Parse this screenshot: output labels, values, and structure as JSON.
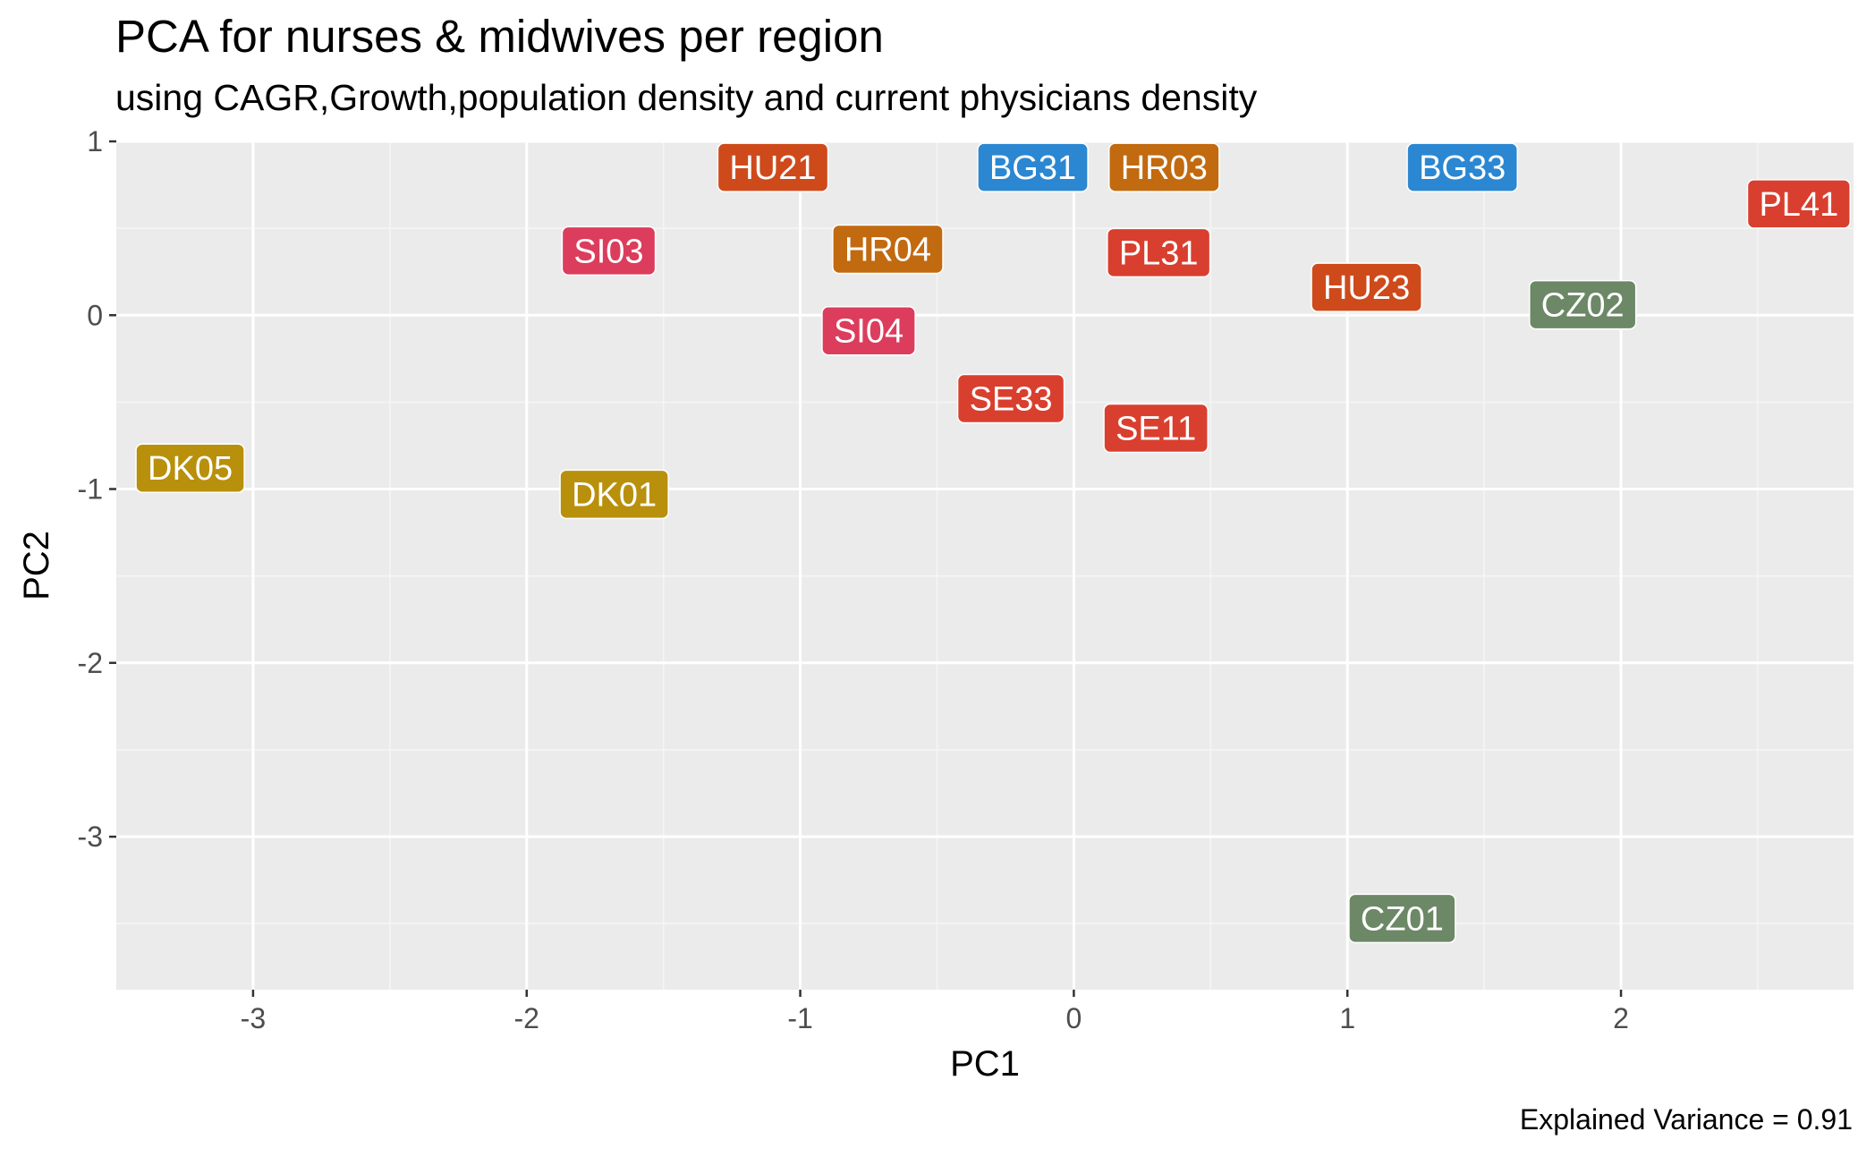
{
  "chart_data": {
    "type": "scatter",
    "title": "PCA for  nurses & midwives per region",
    "subtitle": "using CAGR,Growth,population density and current physicians density",
    "xlabel": "PC1",
    "ylabel": "PC2",
    "caption": "Explained Variance = 0.91",
    "xlim": [
      -3.5,
      2.85
    ],
    "ylim": [
      -3.88,
      1.0
    ],
    "x_ticks": [
      -3,
      -2,
      -1,
      0,
      1,
      2
    ],
    "x_tick_labels": [
      "-3",
      "-2",
      "-1",
      "0",
      "1",
      "2"
    ],
    "y_ticks": [
      -3,
      -2,
      -1,
      0,
      1
    ],
    "y_tick_labels": [
      "-3",
      "-2",
      "-1",
      "0",
      "1"
    ],
    "grid": true,
    "legend": "none",
    "colors": {
      "panel_background": "#ebebeb",
      "grid_major": "#ffffff",
      "grid_minor": "#f5f5f5",
      "label_text": "#ffffff"
    },
    "points": [
      {
        "label": "HU21",
        "x": -1.1,
        "y": 0.85,
        "color": "#ce4a1b"
      },
      {
        "label": "BG31",
        "x": -0.15,
        "y": 0.85,
        "color": "#2b87d1"
      },
      {
        "label": "HR03",
        "x": 0.33,
        "y": 0.85,
        "color": "#c26a0f"
      },
      {
        "label": "BG33",
        "x": 1.42,
        "y": 0.85,
        "color": "#2b87d1"
      },
      {
        "label": "PL41",
        "x": 2.65,
        "y": 0.64,
        "color": "#d93f2e"
      },
      {
        "label": "SI03",
        "x": -1.7,
        "y": 0.37,
        "color": "#dc3d5d"
      },
      {
        "label": "HR04",
        "x": -0.68,
        "y": 0.38,
        "color": "#c26a0f"
      },
      {
        "label": "PL31",
        "x": 0.31,
        "y": 0.36,
        "color": "#d93f2e"
      },
      {
        "label": "HU23",
        "x": 1.07,
        "y": 0.16,
        "color": "#ce4a1b"
      },
      {
        "label": "CZ02",
        "x": 1.86,
        "y": 0.06,
        "color": "#6c8866"
      },
      {
        "label": "SI04",
        "x": -0.75,
        "y": -0.09,
        "color": "#dc3d5d"
      },
      {
        "label": "SE33",
        "x": -0.23,
        "y": -0.48,
        "color": "#d93f2e"
      },
      {
        "label": "SE11",
        "x": 0.3,
        "y": -0.65,
        "color": "#d93f2e"
      },
      {
        "label": "DK05",
        "x": -3.23,
        "y": -0.88,
        "color": "#b8900b"
      },
      {
        "label": "DK01",
        "x": -1.68,
        "y": -1.03,
        "color": "#b8900b"
      },
      {
        "label": "CZ01",
        "x": 1.2,
        "y": -3.47,
        "color": "#6c8866"
      }
    ]
  }
}
